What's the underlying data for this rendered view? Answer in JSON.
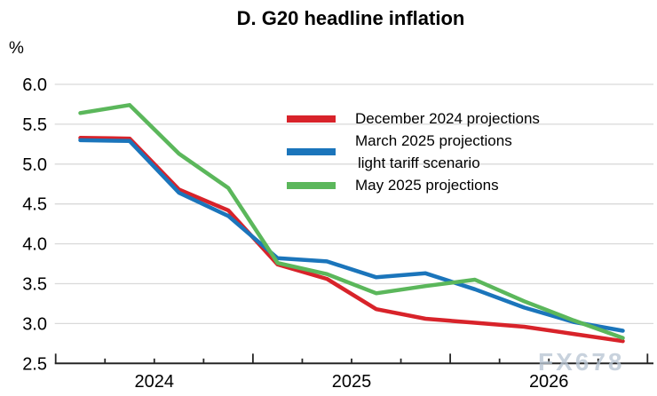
{
  "title": "D. G20 headline inflation",
  "unit_label": "%",
  "watermark": "FX678",
  "legend": {
    "row1_label": "December 2024 projections",
    "row2_label_line1": "March 2025 projections",
    "row2_label_line2": "light tariff scenario",
    "row3_label": "May 2025 projections"
  },
  "chart_data": {
    "type": "line",
    "title": "D. G20 headline inflation",
    "ylabel": "%",
    "xlabel": "",
    "grid": "horizontal",
    "legend_position": "inside-upper-right",
    "ylim": [
      2.5,
      6.0
    ],
    "ytick_labels": [
      "6.0",
      "5.5",
      "5.0",
      "4.5",
      "4.0",
      "3.5",
      "3.0",
      "2.5"
    ],
    "ytick_values": [
      6.0,
      5.5,
      5.0,
      4.5,
      4.0,
      3.5,
      3.0,
      2.5
    ],
    "xtick_labels": [
      "2024",
      "2025",
      "2026"
    ],
    "x": [
      "2024 Q1",
      "2024 Q2",
      "2024 Q3",
      "2024 Q4",
      "2025 Q1",
      "2025 Q2",
      "2025 Q3",
      "2025 Q4",
      "2026 Q1",
      "2026 Q2",
      "2026 Q3",
      "2026 Q4"
    ],
    "series": [
      {
        "name": "December 2024 projections",
        "color": "#d8232a",
        "values": [
          5.33,
          5.32,
          4.68,
          4.42,
          3.74,
          3.56,
          3.18,
          3.06,
          3.01,
          2.96,
          2.87,
          2.78
        ]
      },
      {
        "name": "March 2025 projections light tariff scenario",
        "color": "#1b75bb",
        "values": [
          5.3,
          5.29,
          4.64,
          4.35,
          3.82,
          3.78,
          3.58,
          3.63,
          3.43,
          3.2,
          3.02,
          2.91
        ]
      },
      {
        "name": "May 2025 projections",
        "color": "#5bb75b",
        "values": [
          5.64,
          5.74,
          5.13,
          4.7,
          3.76,
          3.62,
          3.38,
          3.47,
          3.55,
          3.28,
          3.04,
          2.82
        ]
      }
    ]
  },
  "layout_colors": {
    "gridline": "#d9d9d9",
    "axis": "#262626",
    "watermark": "#b9c6d4"
  }
}
